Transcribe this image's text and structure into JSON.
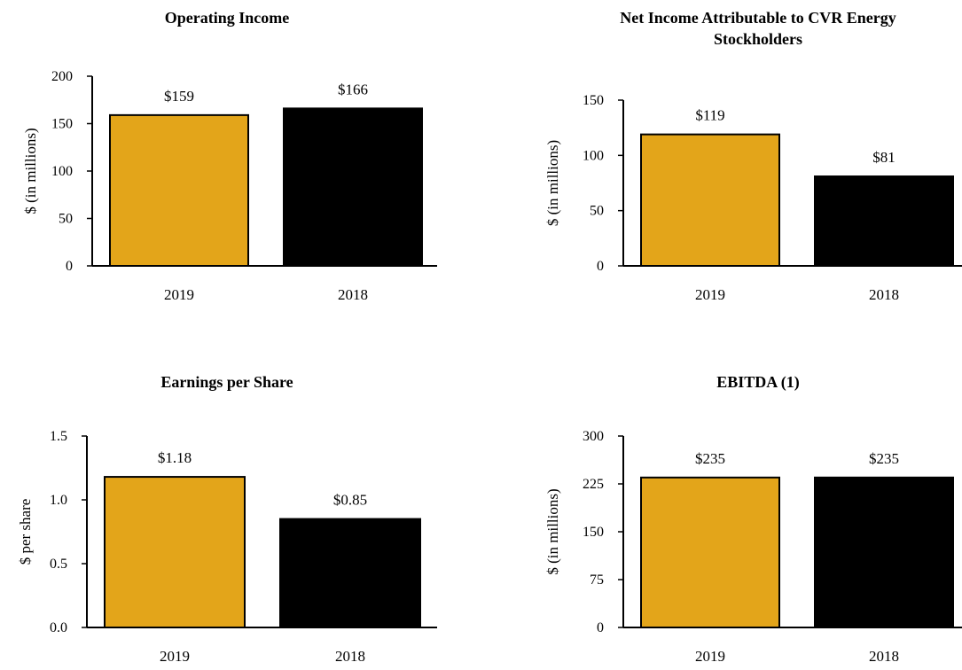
{
  "colors": {
    "gold": "#E3A51A",
    "black": "#000000"
  },
  "chart_data": [
    {
      "type": "bar",
      "title_lines": [
        "Operating Income"
      ],
      "ylabel": "$ (in millions)",
      "categories": [
        "2019",
        "2018"
      ],
      "values": [
        159,
        166
      ],
      "data_labels": [
        "$159",
        "$166"
      ],
      "bar_colors": [
        "#E3A51A",
        "#000000"
      ],
      "ylim": [
        0,
        200
      ],
      "yticks": [
        "0",
        "50",
        "100",
        "150",
        "200"
      ]
    },
    {
      "type": "bar",
      "title_lines": [
        "Net Income Attributable to CVR Energy",
        "Stockholders"
      ],
      "ylabel": "$ (in millions)",
      "categories": [
        "2019",
        "2018"
      ],
      "values": [
        119,
        81
      ],
      "data_labels": [
        "$119",
        "$81"
      ],
      "bar_colors": [
        "#E3A51A",
        "#000000"
      ],
      "ylim": [
        0,
        150
      ],
      "yticks": [
        "0",
        "50",
        "100",
        "150"
      ]
    },
    {
      "type": "bar",
      "title_lines": [
        "Earnings per Share"
      ],
      "ylabel": "$ per share",
      "categories": [
        "2019",
        "2018"
      ],
      "values": [
        1.18,
        0.85
      ],
      "data_labels": [
        "$1.18",
        "$0.85"
      ],
      "bar_colors": [
        "#E3A51A",
        "#000000"
      ],
      "ylim": [
        0,
        1.5
      ],
      "yticks": [
        "0.0",
        "0.5",
        "1.0",
        "1.5"
      ]
    },
    {
      "type": "bar",
      "title_lines": [
        "EBITDA (1)"
      ],
      "ylabel": "$ (in millions)",
      "categories": [
        "2019",
        "2018"
      ],
      "values": [
        235,
        235
      ],
      "data_labels": [
        "$235",
        "$235"
      ],
      "bar_colors": [
        "#E3A51A",
        "#000000"
      ],
      "ylim": [
        0,
        300
      ],
      "yticks": [
        "0",
        "75",
        "150",
        "225",
        "300"
      ]
    }
  ]
}
